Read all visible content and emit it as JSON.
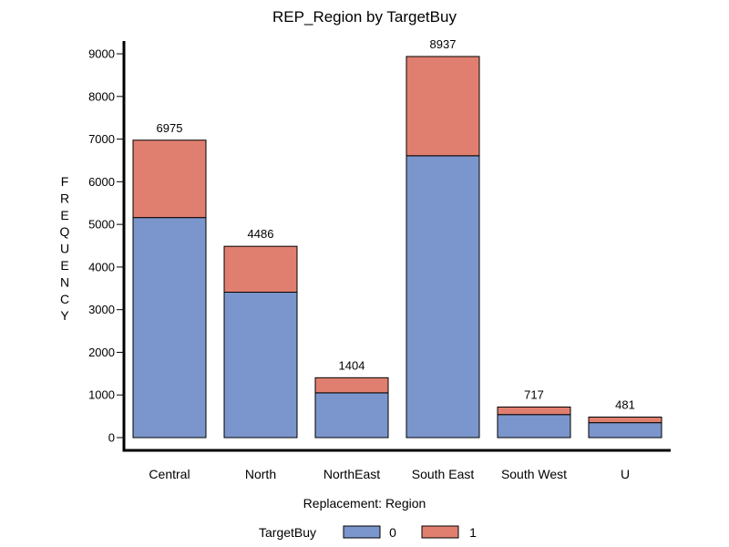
{
  "chart_data": {
    "type": "bar",
    "stacked": true,
    "title": "REP_Region by TargetBuy",
    "xlabel": "Replacement: Region",
    "ylabel": "FREQUENCY",
    "ylim": [
      0,
      9300
    ],
    "yticks": [
      0,
      1000,
      2000,
      3000,
      4000,
      5000,
      6000,
      7000,
      8000,
      9000
    ],
    "categories": [
      "Central",
      "North",
      "NorthEast",
      "South East",
      "South West",
      "U"
    ],
    "series": [
      {
        "name": "0",
        "color": "#7b96cc",
        "values": [
          5160,
          3410,
          1050,
          6610,
          540,
          350
        ]
      },
      {
        "name": "1",
        "color": "#e07f70",
        "values": [
          1815,
          1076,
          354,
          2327,
          177,
          131
        ]
      }
    ],
    "totals": [
      "6975",
      "4486",
      "1404",
      "8937",
      "717",
      "481"
    ],
    "legend": {
      "title": "TargetBuy",
      "position": "bottom"
    },
    "grid": false
  }
}
